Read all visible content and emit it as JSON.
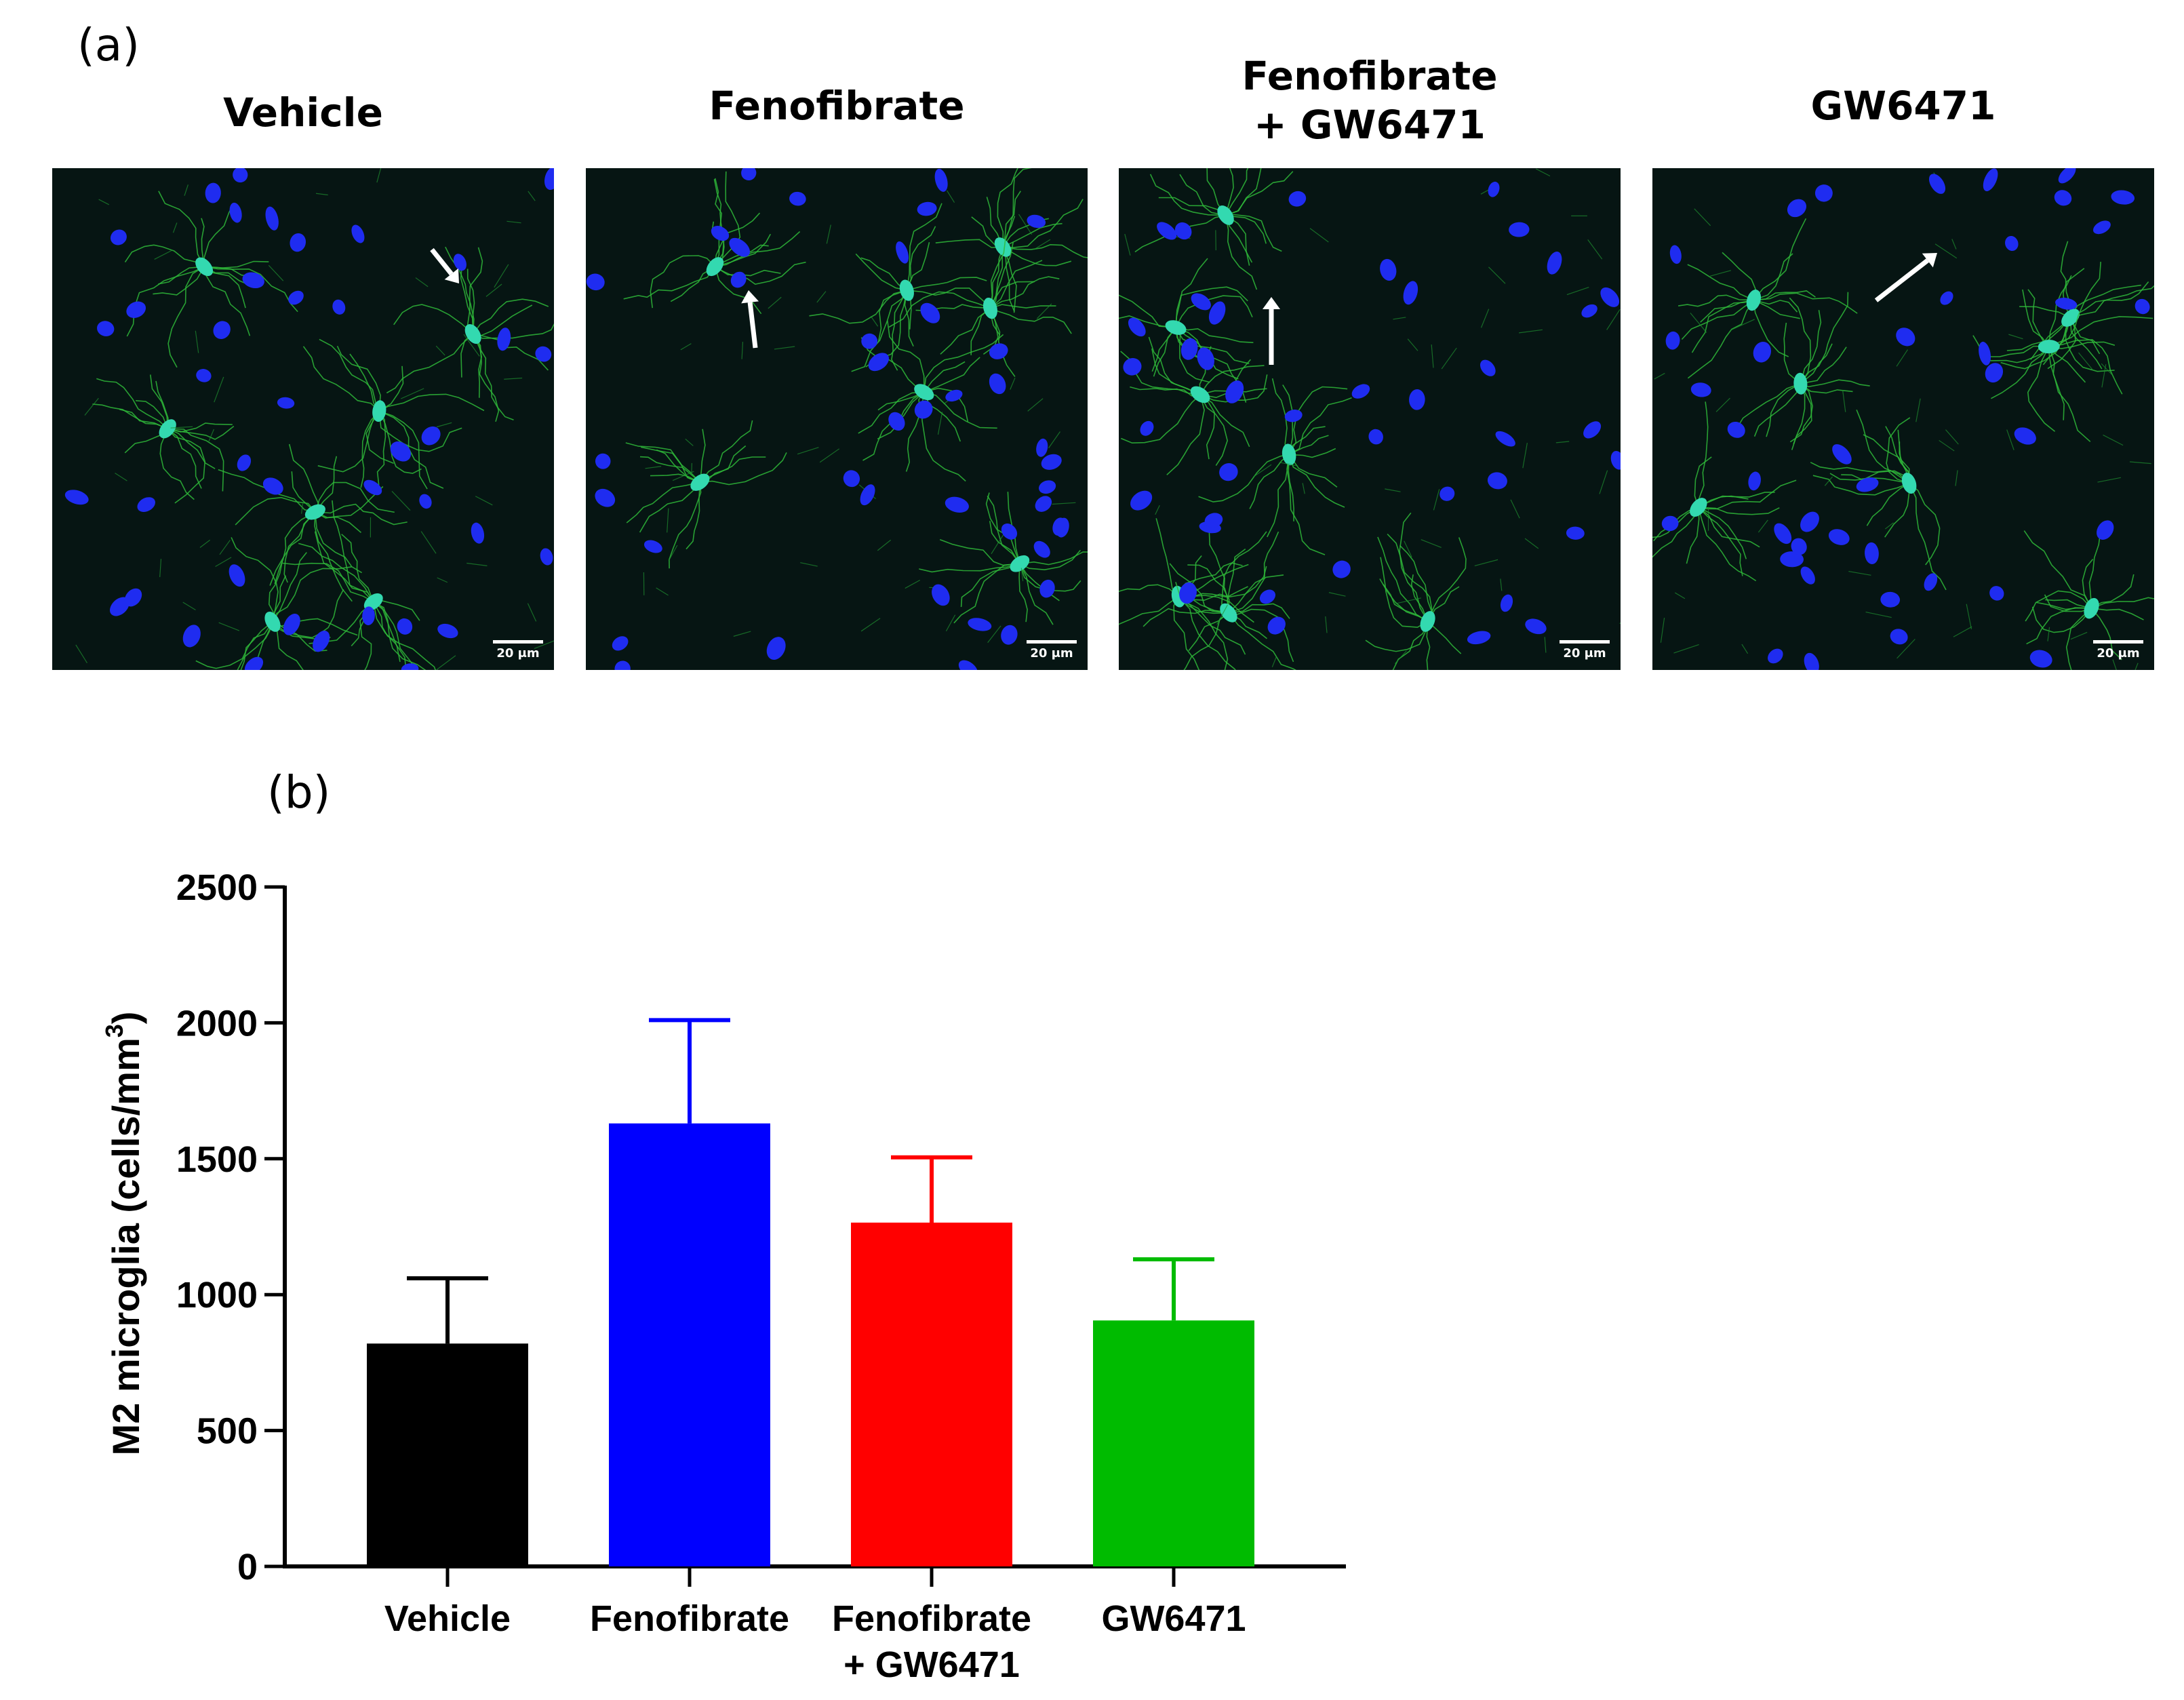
{
  "panel_a": {
    "label": "(a)",
    "images": [
      {
        "title": "Vehicle",
        "title2": "",
        "scale": "20 μm"
      },
      {
        "title": "Fenofibrate",
        "title2": "",
        "scale": "20 μm"
      },
      {
        "title": "Fenofibrate",
        "title2": "+ GW6471",
        "scale": "20 μm"
      },
      {
        "title": "GW6471",
        "title2": "",
        "scale": "20 μm"
      }
    ]
  },
  "panel_b": {
    "label": "(b)"
  },
  "chart_data": {
    "type": "bar",
    "categories": [
      "Vehicle",
      "Fenofibrate",
      "Fenofibrate\n+ GW6471",
      "GW6471"
    ],
    "values": [
      820,
      1630,
      1265,
      905
    ],
    "errors": [
      240,
      380,
      240,
      225
    ],
    "colors": [
      "#000000",
      "#0000ff",
      "#ff0000",
      "#00bb00"
    ],
    "ylabel": "M2 microglia (cells/mm",
    "ylabel_superscript": "3",
    "ylabel_close": ")",
    "ylim": [
      0,
      2500
    ],
    "yticks": [
      0,
      500,
      1000,
      1500,
      2000,
      2500
    ],
    "grid": false
  }
}
